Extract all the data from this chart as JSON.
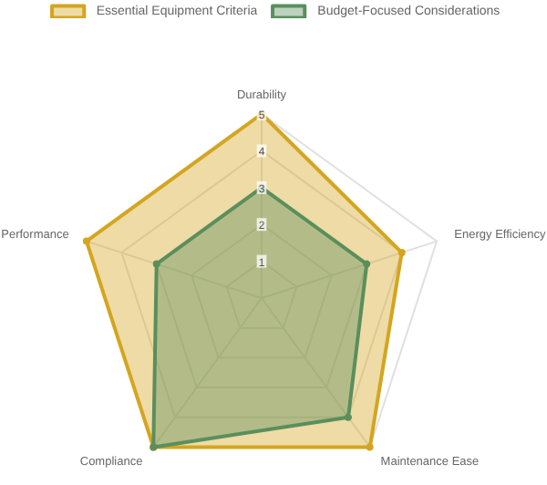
{
  "chart_data": {
    "type": "radar",
    "categories": [
      "Durability",
      "Energy Efficiency",
      "Maintenance Ease",
      "Compliance",
      "Performance"
    ],
    "series": [
      {
        "name": "Essential Equipment Criteria",
        "color": "#d4a520",
        "values": [
          5,
          4,
          5,
          5,
          5
        ]
      },
      {
        "name": "Budget-Focused Considerations",
        "color": "#5a8f5c",
        "values": [
          3,
          3,
          4,
          5,
          3
        ]
      }
    ],
    "ylim": [
      0,
      5
    ],
    "yticks": [
      1,
      2,
      3,
      4,
      5
    ],
    "grid": true,
    "legend": "top",
    "marker": "circle"
  }
}
